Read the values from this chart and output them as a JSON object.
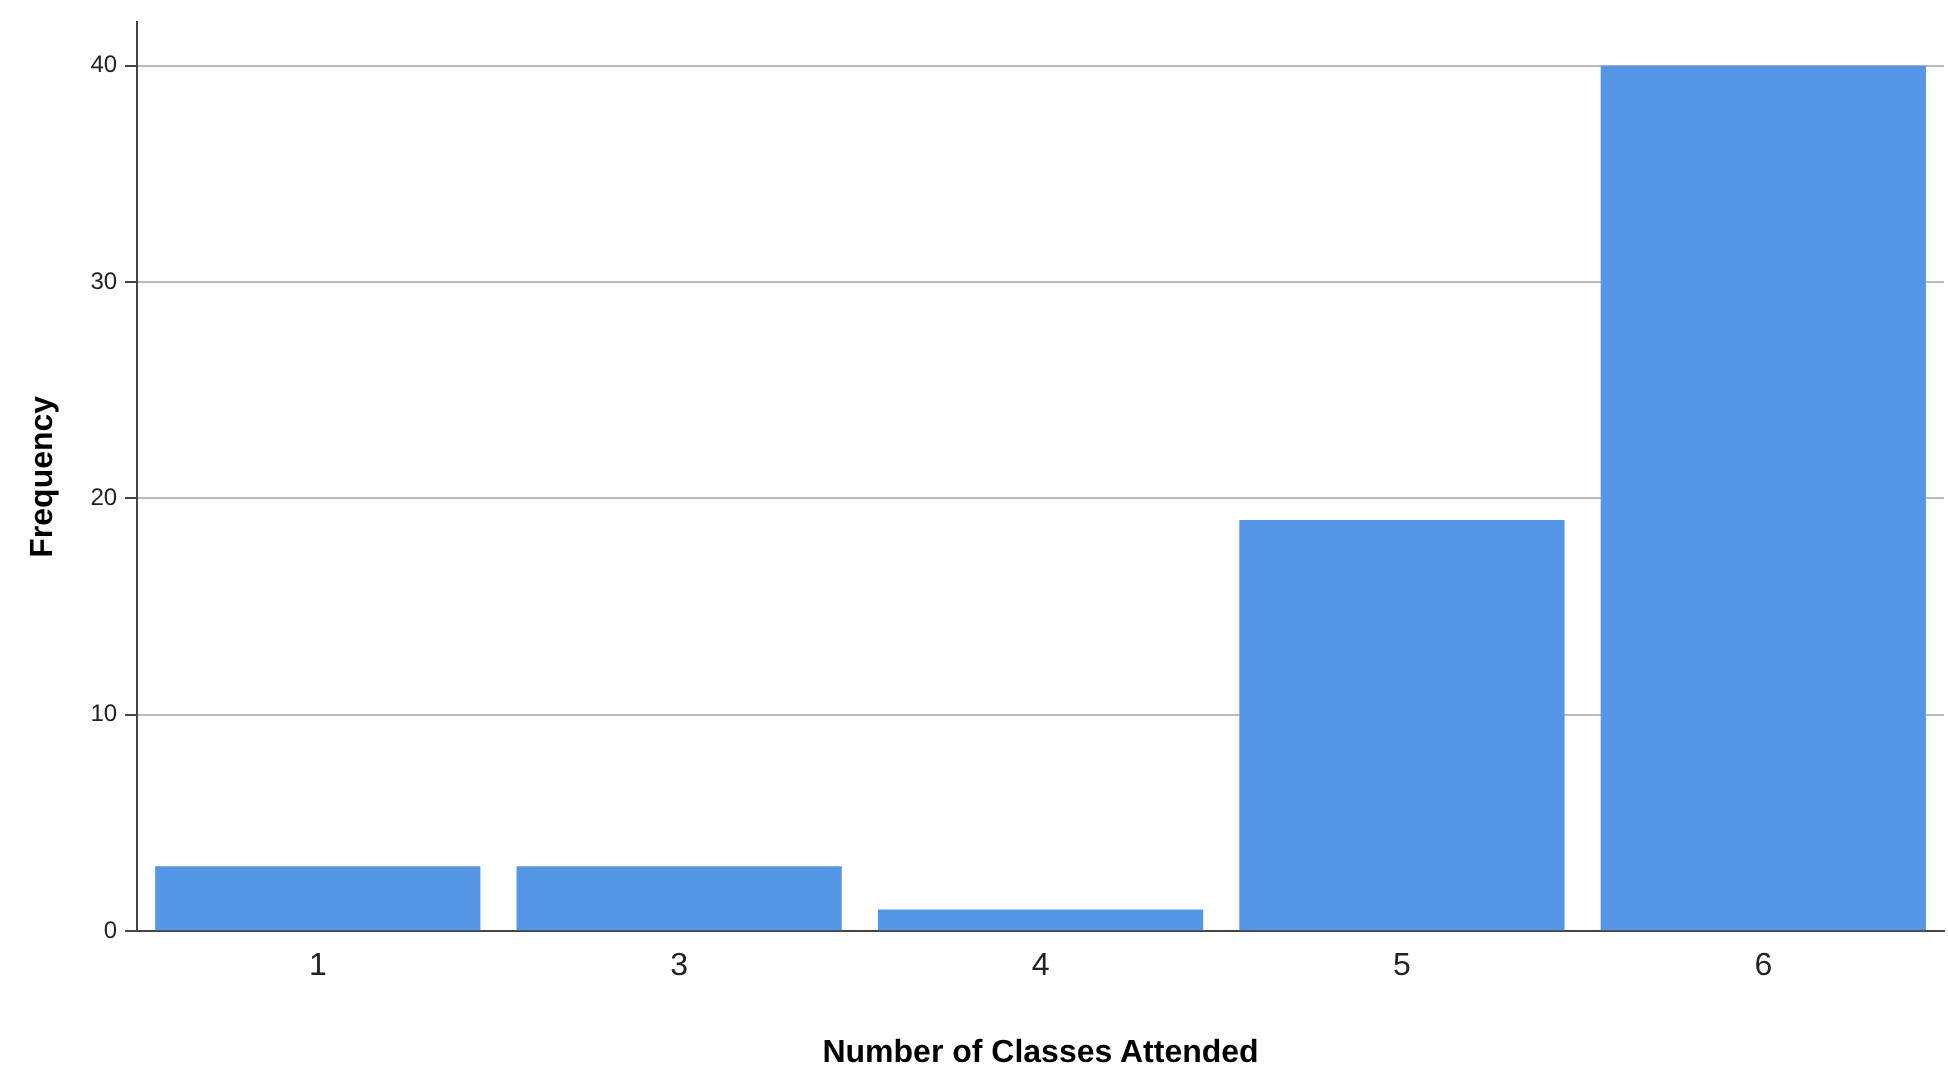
{
  "chart_data": {
    "type": "bar",
    "xlabel": "Number of Classes Attended",
    "ylabel": "Frequency",
    "categories": [
      "1",
      "3",
      "4",
      "5",
      "6"
    ],
    "values": [
      3,
      3,
      1,
      19,
      40
    ],
    "color": "#5596e6",
    "ylim": [
      0,
      42
    ],
    "yticks": [
      0,
      10,
      20,
      30,
      40
    ],
    "grid": "y",
    "legend": false
  }
}
